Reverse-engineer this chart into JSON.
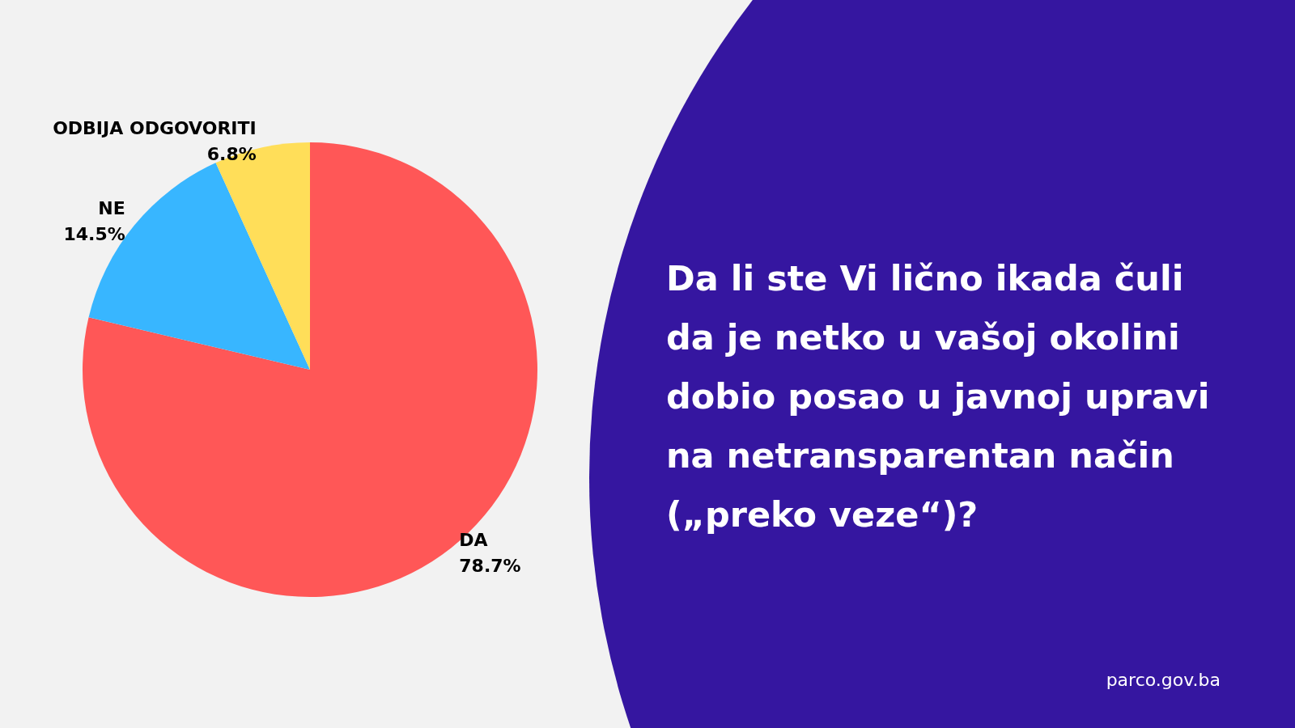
{
  "chart_data": {
    "type": "pie",
    "title": "Da li ste Vi lično ikada čuli da je netko u vašoj okolini dobio posao u javnoj upravi na netransparentan način („preko veze“)?",
    "categories": [
      "DA",
      "NE",
      "ODBIJA ODGOVORITI"
    ],
    "values": [
      78.7,
      14.5,
      6.8
    ],
    "colors": [
      "#ff5757",
      "#38b6ff",
      "#ffde59"
    ],
    "value_labels": [
      "78.7%",
      "14.5%",
      "6.8%"
    ],
    "legend": false,
    "annotations": [
      "parco.gov.ba"
    ]
  }
}
